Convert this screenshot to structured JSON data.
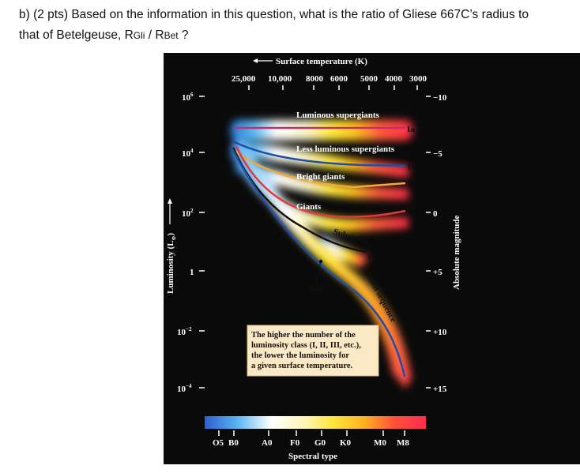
{
  "question": {
    "line1": "b) (2 pts) Based on the information in this question, what is the ratio of Gliese 667C’s radius to",
    "line2_prefix": "that of Betelgeuse, R",
    "sub1": "Gli",
    "slash": " / R",
    "sub2": "Bet",
    "suffix": " ?"
  },
  "figure": {
    "top_axis_title": "Surface temperature (K)",
    "top_ticks": [
      "25,000",
      "10,000",
      "8000",
      "6000",
      "5000",
      "4000",
      "3000"
    ],
    "left_axis_title": "Luminosity (L",
    "left_axis_sub": "⊙",
    "left_axis_close": ")",
    "left_ticks": [
      {
        "base": "10",
        "exp": "6"
      },
      {
        "base": "10",
        "exp": "4"
      },
      {
        "base": "10",
        "exp": "2"
      },
      {
        "base": "1",
        "exp": ""
      },
      {
        "base": "10",
        "exp": "−2"
      },
      {
        "base": "10",
        "exp": "−4"
      }
    ],
    "right_axis_title": "Absolute magnitude",
    "right_ticks": [
      "−10",
      "−5",
      "0",
      "+5",
      "+10",
      "+15"
    ],
    "bottom_axis_title": "Spectral type",
    "bottom_ticks": [
      "O5",
      "B0",
      "A0",
      "F0",
      "G0",
      "K0",
      "M0",
      "M8"
    ],
    "region_labels": {
      "lum_supergiants": "Luminous supergiants",
      "less_lum_supergiants": "Less luminous supergiants",
      "bright_giants": "Bright giants",
      "giants": "Giants",
      "subgiants": "Subgiants",
      "main_sequence": "Main sequence",
      "sun": "Sun"
    },
    "class_labels": {
      "Ia": "Ia",
      "Ib": "Ib",
      "II": "II",
      "III": "III",
      "IV": "IV",
      "V": "V"
    },
    "note_lines": [
      "The higher the number of the",
      "luminosity class (I, II, III, etc.),",
      "the lower the luminosity for",
      "a given surface temperature."
    ],
    "colors": {
      "background": "#0a0a0a",
      "ia_line": "#c0306a",
      "ib_line": "#1f4fa8",
      "ii_line": "#f2a93b",
      "iii_line": "#e23a3a",
      "iv_line": "#111111",
      "v_line": "#1f4fa8",
      "note_bg": "#fbe8c4"
    }
  }
}
